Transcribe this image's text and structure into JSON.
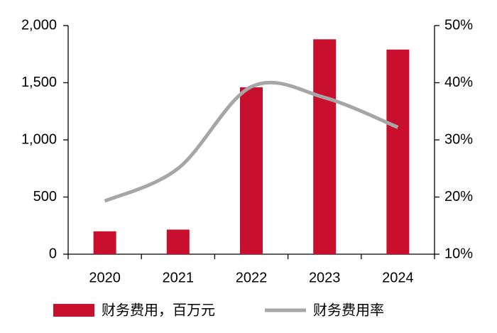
{
  "chart_data": {
    "type": "bar",
    "categories": [
      "2020",
      "2021",
      "2022",
      "2023",
      "2024"
    ],
    "series": [
      {
        "name": "财务费用，百万元",
        "type": "bar",
        "color": "#c8102e",
        "values": [
          200,
          215,
          1460,
          1880,
          1790
        ]
      },
      {
        "name": "财务费用率",
        "type": "line",
        "axis": "y2",
        "color": "#a6a6a6",
        "values": [
          19.3,
          25.0,
          39.3,
          37.4,
          32.2
        ]
      }
    ],
    "ylim": [
      0,
      2000
    ],
    "yticks": [
      0,
      500,
      {
        "value": 1000,
        "label": "1,000"
      },
      {
        "value": 1500,
        "label": "1,500"
      },
      {
        "value": 2000,
        "label": "2,000"
      }
    ],
    "y2lim": [
      10,
      50
    ],
    "y2ticks": [
      {
        "value": 10,
        "label": "10%"
      },
      {
        "value": 20,
        "label": "20%"
      },
      {
        "value": 30,
        "label": "30%"
      },
      {
        "value": 40,
        "label": "40%"
      },
      {
        "value": 50,
        "label": "50%"
      }
    ],
    "legend": "bottom"
  }
}
